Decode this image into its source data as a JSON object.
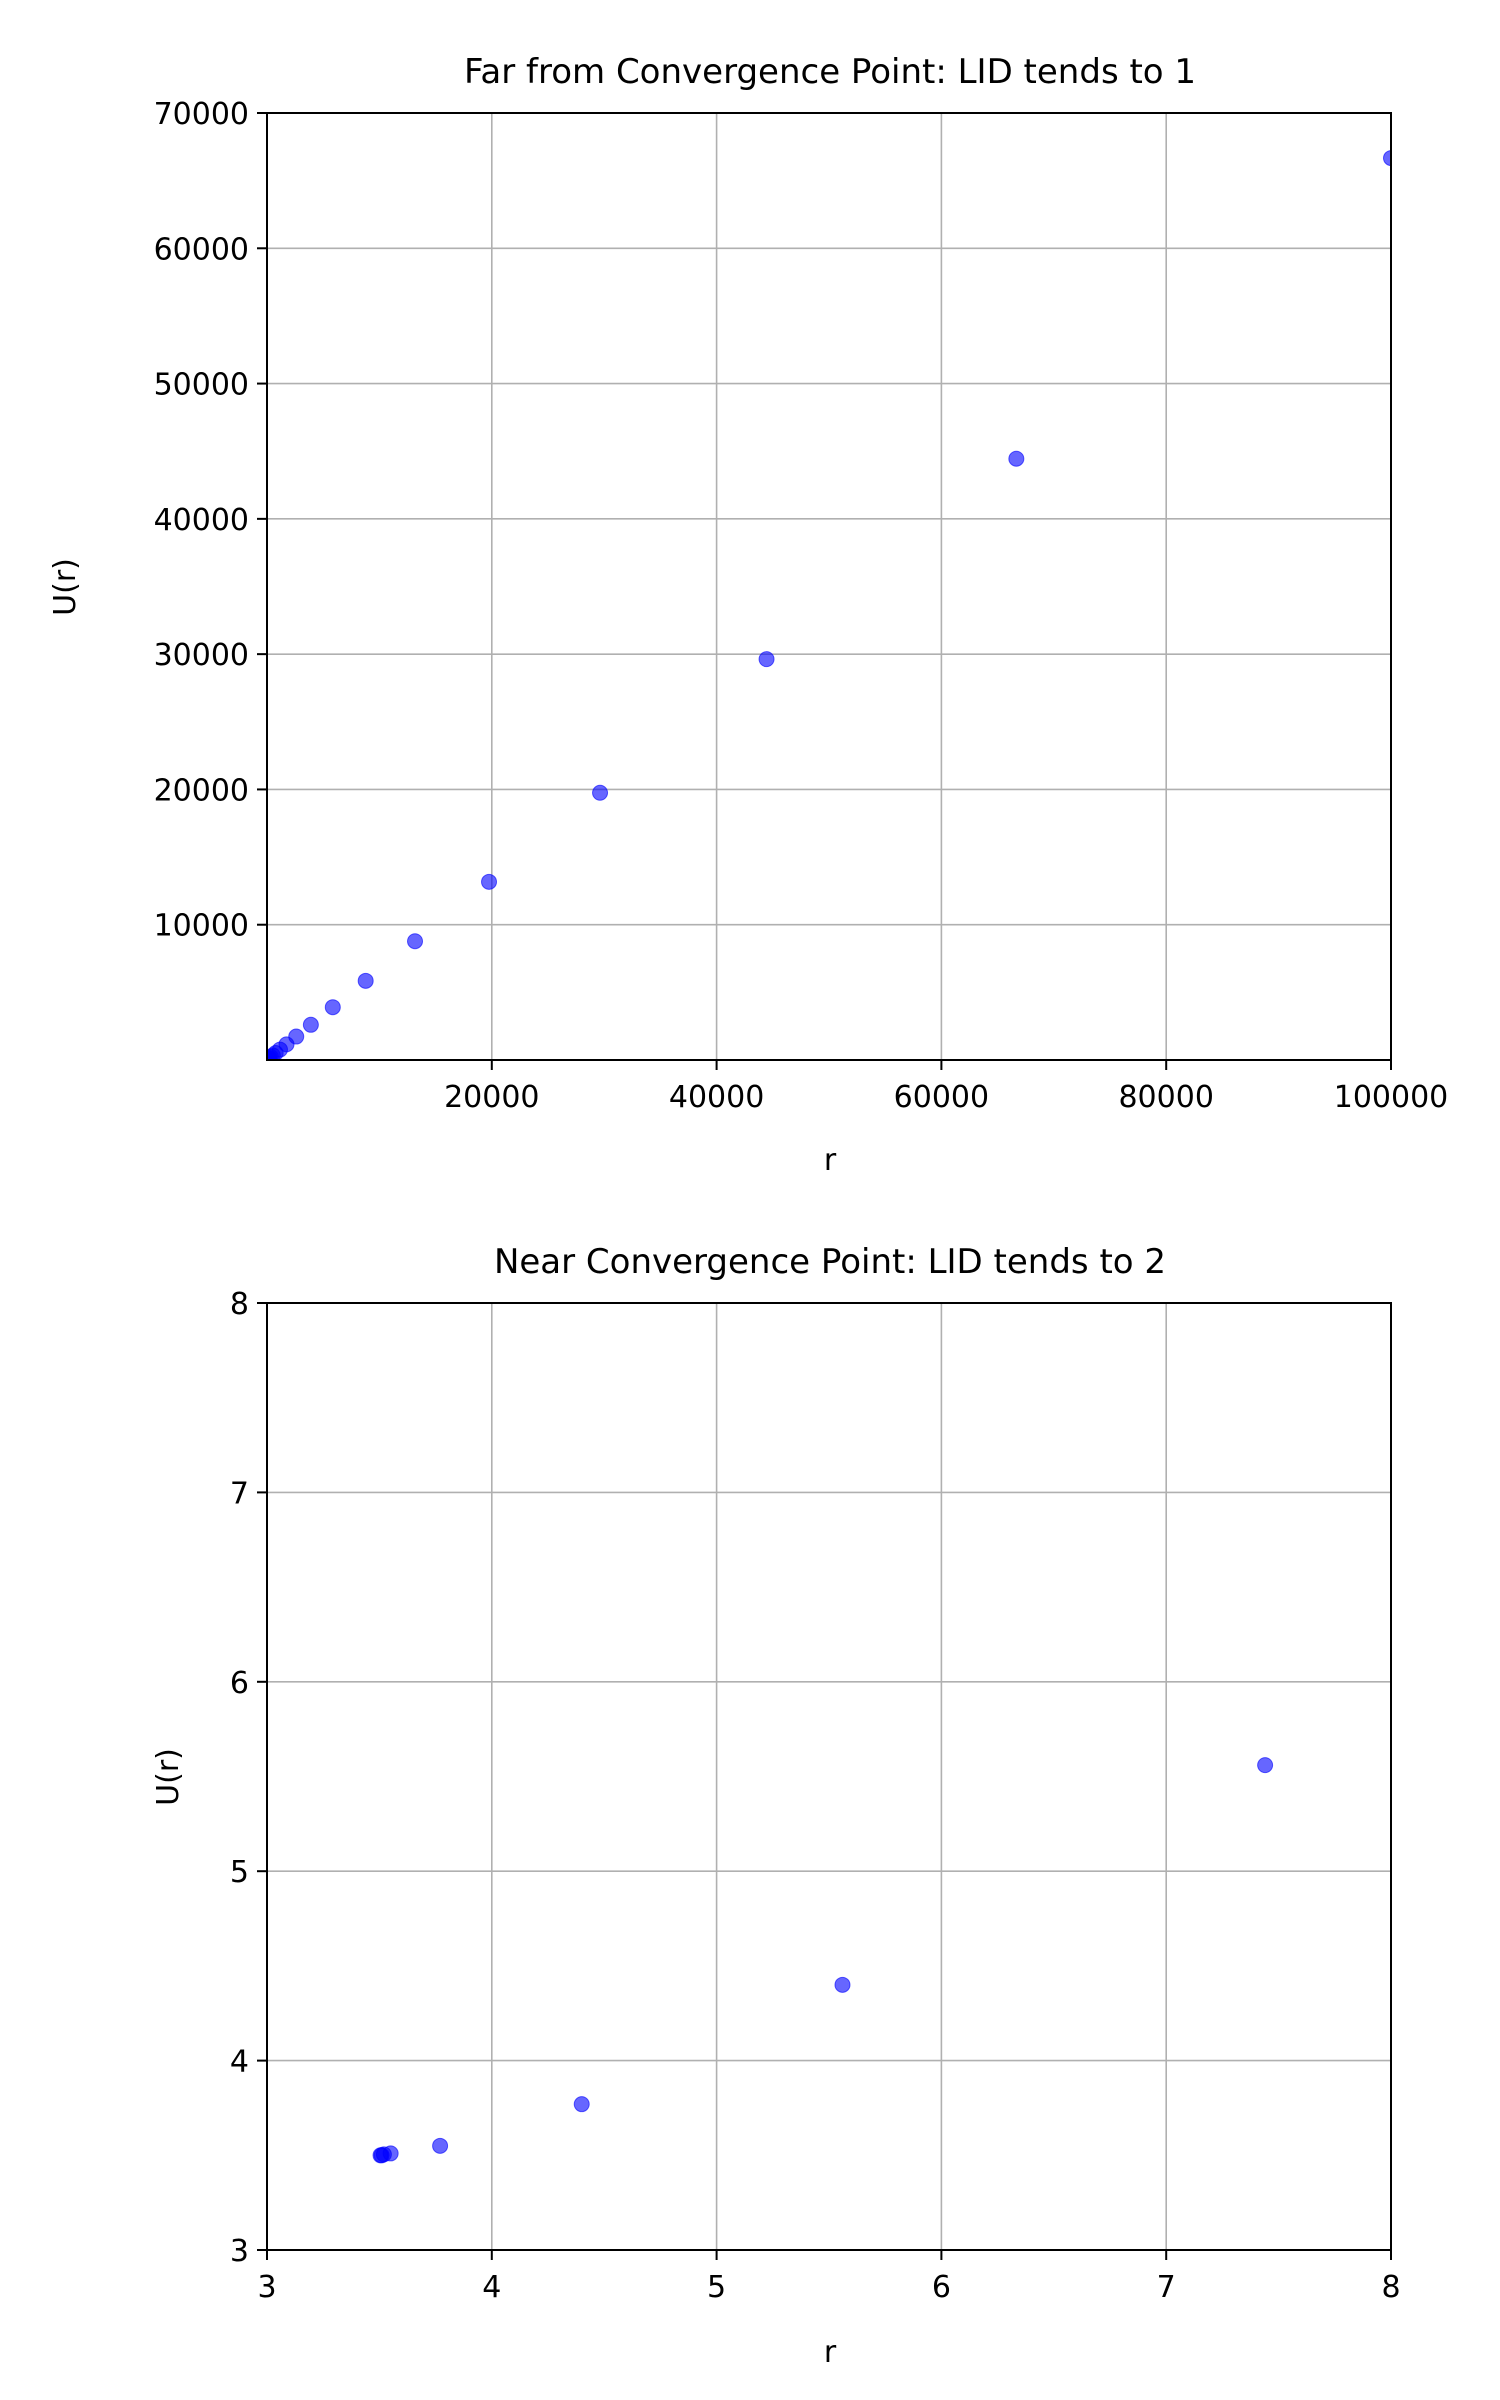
{
  "chart_data": [
    {
      "type": "scatter",
      "title": "Far from Convergence Point: LID tends to 1",
      "xlabel": "r",
      "ylabel": "U(r)",
      "xlim": [
        0,
        100000
      ],
      "ylim": [
        0,
        70000
      ],
      "xticks": [
        20000,
        40000,
        60000,
        80000,
        100000
      ],
      "yticks": [
        10000,
        20000,
        30000,
        40000,
        50000,
        60000,
        70000
      ],
      "grid": true,
      "color": "#0000ff",
      "series": [
        {
          "x": [
            100000,
            66667,
            44444,
            29630,
            19753,
            13169,
            8779,
            5853,
            3902,
            2601,
            1734,
            1156,
            771,
            514,
            343,
            228,
            152,
            101,
            68
          ],
          "y": [
            66667,
            44444,
            29630,
            19753,
            13169,
            8779,
            5853,
            3902,
            2601,
            1734,
            1156,
            771,
            514,
            343,
            228,
            152,
            101,
            68,
            45
          ]
        }
      ]
    },
    {
      "type": "scatter",
      "title": "Near Convergence Point: LID tends to 2",
      "xlabel": "r",
      "ylabel": "U(r)",
      "xlim": [
        3,
        8
      ],
      "ylim": [
        3,
        8
      ],
      "xticks": [
        3,
        4,
        5,
        6,
        7,
        8
      ],
      "yticks": [
        3,
        4,
        5,
        6,
        7,
        8
      ],
      "grid": true,
      "color": "#0000ff",
      "series": [
        {
          "x": [
            7.44,
            5.56,
            4.4,
            3.77,
            3.55,
            3.52,
            3.51,
            3.505
          ],
          "y": [
            5.56,
            4.4,
            3.77,
            3.55,
            3.51,
            3.505,
            3.5,
            3.5
          ]
        }
      ]
    }
  ]
}
